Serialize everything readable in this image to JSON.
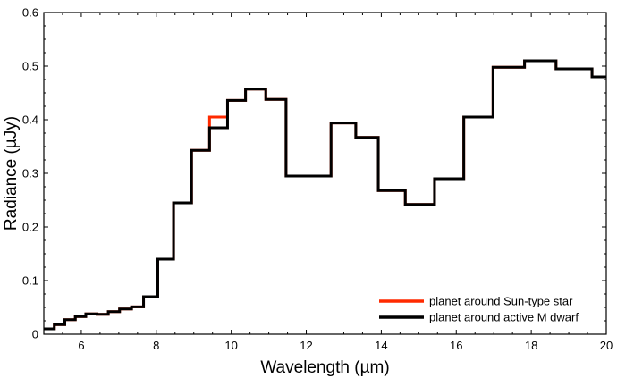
{
  "chart_data": {
    "type": "line",
    "step": true,
    "title": "",
    "xlabel": "Wavelength (µm)",
    "ylabel": "Radiance (µJy)",
    "xlim": [
      5,
      20
    ],
    "ylim": [
      0,
      0.6
    ],
    "xticks": [
      6,
      8,
      10,
      12,
      14,
      16,
      18,
      20
    ],
    "yticks": [
      0,
      0.1,
      0.2,
      0.3,
      0.4,
      0.5,
      0.6
    ],
    "ytick_labels": [
      "0",
      "0.1",
      "0.2",
      "0.3",
      "0.4",
      "0.5",
      "0.6"
    ],
    "legend_position": "bottom-right",
    "series": [
      {
        "name": "planet around Sun-type star",
        "color": "#ff2a00",
        "edges": [
          5.0,
          5.28,
          5.56,
          5.84,
          6.12,
          6.42,
          6.72,
          7.02,
          7.34,
          7.66,
          8.04,
          8.46,
          8.94,
          9.42,
          9.9,
          10.38,
          10.92,
          11.46,
          12.66,
          13.32,
          13.92,
          14.64,
          15.42,
          16.2,
          16.98,
          17.82,
          18.66,
          19.62,
          20.0
        ],
        "values": [
          0.01,
          0.018,
          0.027,
          0.033,
          0.038,
          0.037,
          0.042,
          0.047,
          0.051,
          0.07,
          0.14,
          0.245,
          0.343,
          0.405,
          0.436,
          0.457,
          0.438,
          0.295,
          0.394,
          0.367,
          0.268,
          0.242,
          0.29,
          0.405,
          0.498,
          0.51,
          0.495,
          0.48
        ]
      },
      {
        "name": "planet around active M dwarf",
        "color": "#000000",
        "edges": [
          5.0,
          5.28,
          5.56,
          5.84,
          6.12,
          6.42,
          6.72,
          7.02,
          7.34,
          7.66,
          8.04,
          8.46,
          8.94,
          9.42,
          9.9,
          10.38,
          10.92,
          11.46,
          12.66,
          13.32,
          13.92,
          14.64,
          15.42,
          16.2,
          16.98,
          17.82,
          18.66,
          19.62,
          20.0
        ],
        "values": [
          0.01,
          0.018,
          0.027,
          0.033,
          0.038,
          0.037,
          0.042,
          0.047,
          0.051,
          0.07,
          0.14,
          0.245,
          0.343,
          0.385,
          0.436,
          0.457,
          0.438,
          0.295,
          0.394,
          0.367,
          0.268,
          0.242,
          0.29,
          0.405,
          0.498,
          0.51,
          0.495,
          0.48
        ]
      }
    ]
  }
}
